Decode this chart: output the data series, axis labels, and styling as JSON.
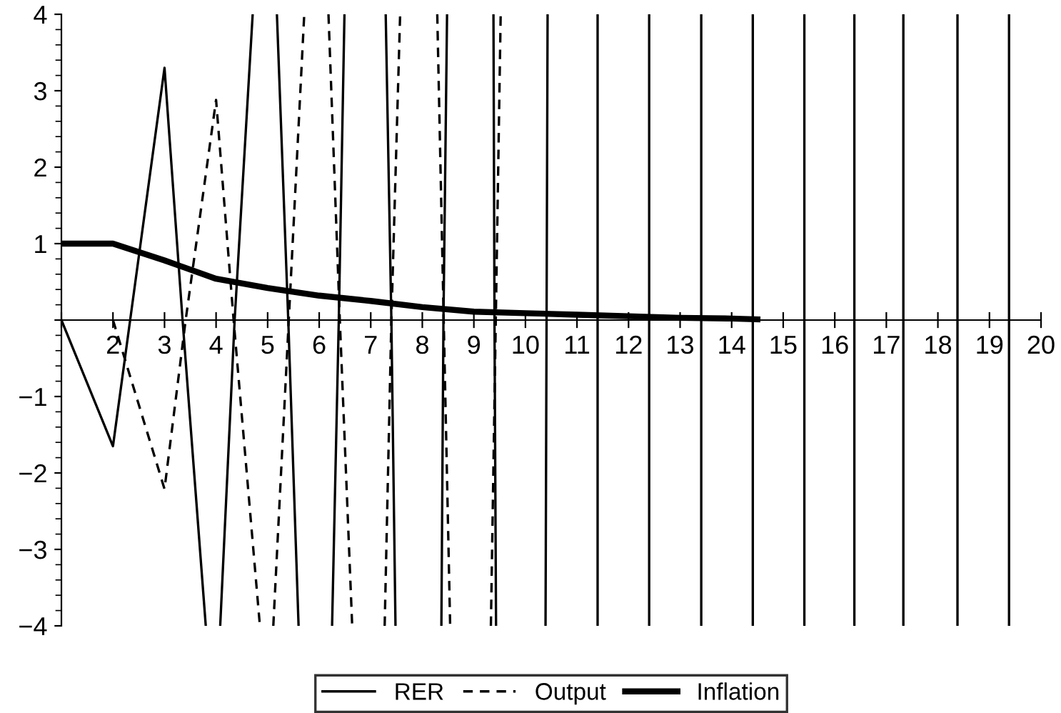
{
  "chart_data": {
    "type": "line",
    "xlim": [
      1,
      20
    ],
    "ylim": [
      -4,
      4
    ],
    "xticks": [
      {
        "value": 1,
        "label": null
      },
      2,
      3,
      4,
      5,
      6,
      7,
      8,
      9,
      10,
      11,
      12,
      13,
      14,
      15,
      16,
      17,
      18,
      19,
      20
    ],
    "yticks": [
      {
        "value": -4,
        "label": "−4"
      },
      {
        "value": -3,
        "label": "−3"
      },
      {
        "value": -2,
        "label": "−2"
      },
      {
        "value": -1,
        "label": "−1"
      },
      {
        "value": 0,
        "label": null
      },
      1,
      2,
      3,
      4
    ],
    "grid": false,
    "legend": "bottom",
    "marker": "none",
    "series": [
      {
        "name": "RER",
        "color": "#000000",
        "line_style": "solid",
        "x": [
          1,
          2,
          3,
          3.35,
          3.8,
          null,
          4.08,
          4.36,
          4.71,
          null,
          5.18,
          5.4,
          5.6,
          null,
          6.25,
          6.38,
          6.49,
          null,
          7.29,
          7.4,
          7.48,
          null,
          8.37,
          8.41,
          8.48,
          null,
          9.38,
          9.4,
          9.43,
          null,
          10.39,
          10.41,
          10.43,
          null,
          11.4,
          11.4,
          null,
          12.4,
          12.4,
          null,
          13.41,
          13.41,
          null,
          14.41,
          14.41,
          null,
          15.41,
          15.41,
          null,
          16.38,
          16.38,
          null,
          17.33,
          17.33,
          null,
          18.38,
          18.38,
          null,
          19.38,
          19.38
        ],
        "values": [
          0,
          -1.65,
          3.3,
          0,
          -4,
          null,
          -4,
          0,
          4,
          null,
          4,
          0,
          -4,
          null,
          -4,
          0,
          4,
          null,
          4,
          0,
          -4,
          null,
          -4,
          0,
          4,
          null,
          4,
          0,
          -4,
          null,
          -4,
          0,
          4,
          null,
          4,
          -4,
          null,
          -4,
          4,
          null,
          4,
          -4,
          null,
          -4,
          4,
          null,
          4,
          -4,
          null,
          -4,
          4,
          null,
          4,
          -4,
          null,
          -4,
          4,
          null,
          4,
          -4
        ]
      },
      {
        "name": "Output",
        "color": "#000000",
        "line_style": "dashed",
        "x": [
          2,
          3,
          3.41,
          4,
          4.34,
          4.85,
          null,
          5.11,
          5.41,
          5.71,
          null,
          6.18,
          6.4,
          6.64,
          null,
          7.27,
          7.4,
          7.57,
          null,
          8.29,
          8.54,
          null,
          9.33,
          9.52
        ],
        "values": [
          0,
          -2.21,
          0,
          2.88,
          0,
          -4,
          null,
          -4,
          0,
          4,
          null,
          4,
          0,
          -4,
          null,
          -4,
          0,
          4,
          null,
          4,
          -4,
          null,
          -4,
          4
        ]
      },
      {
        "name": "Inflation",
        "color": "#000000",
        "line_style": "solid",
        "x": [
          1,
          2,
          3,
          4,
          5,
          6,
          7,
          8,
          9,
          10,
          11,
          12,
          13,
          14,
          14.5
        ],
        "values": [
          1,
          1,
          0.78,
          0.54,
          0.42,
          0.32,
          0.25,
          0.17,
          0.11,
          0.09,
          0.07,
          0.05,
          0.03,
          0.02,
          0.01
        ]
      }
    ]
  }
}
